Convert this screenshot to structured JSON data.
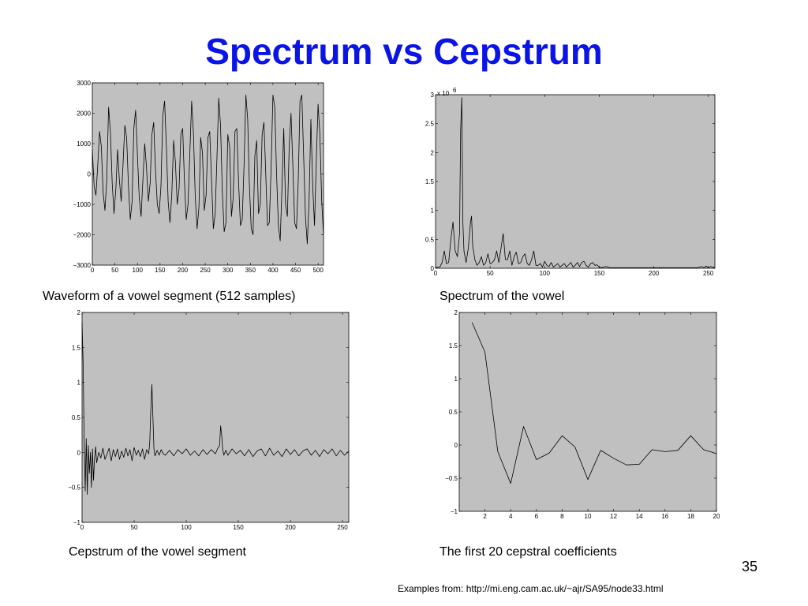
{
  "slide": {
    "title": "Spectrum vs Cepstrum",
    "page_number": "35",
    "source_note": "Examples from: http://mi.eng.cam.ac.uk/~ajr/SA95/node33.html",
    "plot_background": "#c0c0c0",
    "title_color": "#0a14e6"
  },
  "chart_data": [
    {
      "type": "line",
      "caption": "Waveform of a vowel segment (512 samples)",
      "xlim": [
        0,
        512
      ],
      "ylim": [
        -3000,
        3000
      ],
      "xticks": [
        0,
        50,
        100,
        150,
        200,
        250,
        300,
        350,
        400,
        450,
        500
      ],
      "yticks": [
        -3000,
        -2000,
        -1000,
        0,
        1000,
        2000,
        3000
      ],
      "x": [
        0,
        4,
        8,
        12,
        16,
        20,
        24,
        28,
        32,
        36,
        40,
        44,
        48,
        52,
        56,
        60,
        64,
        68,
        72,
        76,
        80,
        84,
        88,
        92,
        96,
        100,
        104,
        108,
        112,
        116,
        120,
        124,
        128,
        132,
        136,
        140,
        144,
        148,
        152,
        156,
        160,
        164,
        168,
        172,
        176,
        180,
        184,
        188,
        192,
        196,
        200,
        204,
        208,
        212,
        216,
        220,
        224,
        228,
        232,
        236,
        240,
        244,
        248,
        252,
        256,
        260,
        264,
        268,
        272,
        276,
        280,
        284,
        288,
        292,
        296,
        300,
        304,
        308,
        312,
        316,
        320,
        324,
        328,
        332,
        336,
        340,
        344,
        348,
        352,
        356,
        360,
        364,
        368,
        372,
        376,
        380,
        384,
        388,
        392,
        396,
        400,
        404,
        408,
        412,
        416,
        420,
        424,
        428,
        432,
        436,
        440,
        444,
        448,
        452,
        456,
        460,
        464,
        468,
        472,
        476,
        480,
        484,
        488,
        492,
        496,
        500,
        504,
        508,
        512
      ],
      "y": [
        800,
        -400,
        -700,
        300,
        1400,
        900,
        -600,
        -1200,
        -200,
        2200,
        1400,
        -300,
        -1300,
        -500,
        800,
        -200,
        -900,
        300,
        1600,
        1200,
        -400,
        -1500,
        -900,
        1500,
        2100,
        600,
        -800,
        -1400,
        -200,
        1000,
        200,
        -900,
        -300,
        1300,
        1700,
        100,
        -1000,
        -1300,
        -400,
        1900,
        2400,
        900,
        -900,
        -1600,
        -700,
        1100,
        400,
        -1000,
        -500,
        1300,
        1500,
        -200,
        -1500,
        -1000,
        700,
        2400,
        1300,
        -800,
        -1800,
        -1100,
        1200,
        700,
        -1200,
        -700,
        1200,
        1400,
        -200,
        -1800,
        -1300,
        500,
        2500,
        1600,
        -600,
        -1900,
        -1600,
        1300,
        900,
        -1400,
        -800,
        1400,
        1500,
        -300,
        -1700,
        -1500,
        300,
        2600,
        1800,
        -400,
        -1800,
        -2000,
        600,
        1100,
        -1300,
        -1000,
        1300,
        1700,
        0,
        -1700,
        -1600,
        200,
        2600,
        2200,
        0,
        -1700,
        -2200,
        -400,
        1500,
        -1000,
        -1400,
        900,
        2000,
        300,
        -1600,
        -1800,
        -200,
        2400,
        2600,
        600,
        -1400,
        -2300,
        -900,
        1800,
        -400,
        -1700,
        400,
        2300,
        1300,
        -900,
        -2000
      ]
    },
    {
      "type": "line",
      "caption": "Spectrum of the vowel",
      "xlim": [
        0,
        256
      ],
      "ylim": [
        0,
        3
      ],
      "exponent_label": "x 10",
      "exponent_value": "6",
      "xticks": [
        0,
        50,
        100,
        150,
        200,
        250
      ],
      "yticks": [
        0,
        0.5,
        1,
        1.5,
        2,
        2.5,
        3
      ],
      "x": [
        0,
        4,
        6,
        8,
        10,
        12,
        14,
        16,
        18,
        20,
        22,
        23,
        24,
        25,
        26,
        28,
        30,
        32,
        33,
        34,
        36,
        38,
        40,
        42,
        44,
        46,
        48,
        50,
        52,
        54,
        56,
        58,
        60,
        62,
        64,
        66,
        68,
        70,
        72,
        74,
        76,
        78,
        80,
        82,
        84,
        86,
        88,
        90,
        92,
        94,
        96,
        98,
        100,
        102,
        104,
        106,
        108,
        110,
        112,
        114,
        116,
        118,
        120,
        122,
        124,
        126,
        128,
        130,
        132,
        134,
        136,
        138,
        140,
        142,
        144,
        146,
        148,
        150,
        152,
        154,
        156,
        160,
        170,
        180,
        190,
        200,
        210,
        220,
        230,
        240,
        244,
        246,
        248,
        250,
        252,
        256
      ],
      "y": [
        0.02,
        0.02,
        0.1,
        0.3,
        0.08,
        0.1,
        0.5,
        0.8,
        0.3,
        0.2,
        0.6,
        2.4,
        2.95,
        0.8,
        0.3,
        0.1,
        0.35,
        0.8,
        0.9,
        0.4,
        0.15,
        0.05,
        0.1,
        0.2,
        0.05,
        0.1,
        0.25,
        0.08,
        0.1,
        0.15,
        0.3,
        0.1,
        0.35,
        0.6,
        0.15,
        0.15,
        0.3,
        0.05,
        0.2,
        0.28,
        0.08,
        0.1,
        0.2,
        0.25,
        0.08,
        0.05,
        0.15,
        0.3,
        0.05,
        0.05,
        0.08,
        0.02,
        0.12,
        0.05,
        0.03,
        0.1,
        0.02,
        0.05,
        0.08,
        0.02,
        0.05,
        0.08,
        0.02,
        0.06,
        0.1,
        0.02,
        0.05,
        0.1,
        0.03,
        0.1,
        0.12,
        0.05,
        0.02,
        0.08,
        0.1,
        0.05,
        0.06,
        0.02,
        0.01,
        0.02,
        0.03,
        0.01,
        0.01,
        0.01,
        0.01,
        0.01,
        0.01,
        0.01,
        0.01,
        0.01,
        0.03,
        0.01,
        0.04,
        0.01,
        0.03,
        0.01
      ]
    },
    {
      "type": "line",
      "caption": "Cepstrum of the vowel segment",
      "xlim": [
        0,
        256
      ],
      "ylim": [
        -1,
        2
      ],
      "xticks": [
        0,
        50,
        100,
        150,
        200,
        250
      ],
      "yticks": [
        -1,
        -0.5,
        0,
        0.5,
        1,
        1.5,
        2
      ],
      "x": [
        0,
        1,
        2,
        3,
        4,
        5,
        6,
        7,
        8,
        9,
        10,
        11,
        12,
        13,
        14,
        16,
        18,
        20,
        22,
        24,
        26,
        28,
        30,
        32,
        34,
        36,
        38,
        40,
        42,
        44,
        46,
        48,
        50,
        52,
        54,
        56,
        58,
        60,
        62,
        64,
        65,
        66,
        67,
        68,
        69,
        70,
        72,
        74,
        76,
        78,
        80,
        84,
        88,
        92,
        96,
        100,
        104,
        108,
        112,
        116,
        120,
        124,
        128,
        130,
        132,
        133,
        134,
        135,
        136,
        138,
        140,
        144,
        148,
        152,
        156,
        160,
        164,
        168,
        172,
        176,
        180,
        184,
        188,
        192,
        196,
        200,
        204,
        208,
        212,
        216,
        220,
        224,
        228,
        232,
        236,
        240,
        244,
        248,
        252,
        256
      ],
      "y": [
        1.85,
        1.3,
        0.2,
        -0.55,
        0.2,
        -0.6,
        0.1,
        -0.3,
        0.0,
        -0.5,
        0.05,
        -0.4,
        -0.1,
        0.08,
        -0.15,
        0.0,
        -0.08,
        0.06,
        -0.1,
        -0.02,
        0.06,
        -0.12,
        0.04,
        -0.06,
        0.05,
        -0.1,
        0.02,
        -0.07,
        0.06,
        -0.05,
        0.04,
        -0.12,
        0.07,
        -0.04,
        0.03,
        -0.06,
        0.05,
        -0.1,
        0.04,
        -0.02,
        0.15,
        0.6,
        0.97,
        0.5,
        0.05,
        -0.05,
        0.03,
        -0.04,
        0.04,
        -0.02,
        -0.04,
        0.03,
        -0.05,
        0.04,
        -0.02,
        0.05,
        -0.04,
        0.02,
        -0.05,
        0.04,
        -0.03,
        0.04,
        -0.02,
        0.05,
        0.1,
        0.38,
        0.25,
        0.05,
        -0.04,
        0.03,
        -0.04,
        0.05,
        -0.02,
        0.03,
        -0.05,
        0.04,
        -0.06,
        0.02,
        0.05,
        -0.05,
        0.06,
        -0.04,
        0.02,
        -0.06,
        0.05,
        -0.03,
        0.04,
        -0.05,
        0.02,
        0.05,
        -0.04,
        0.03,
        -0.06,
        0.04,
        -0.02,
        0.05,
        -0.05,
        0.03,
        -0.04,
        0.02
      ]
    },
    {
      "type": "line",
      "caption": "The first 20 cepstral coefficients",
      "xlim": [
        0,
        20
      ],
      "ylim": [
        -1,
        2
      ],
      "xticks": [
        2,
        4,
        6,
        8,
        10,
        12,
        14,
        16,
        18,
        20
      ],
      "yticks": [
        -1,
        -0.5,
        0,
        0.5,
        1,
        1.5,
        2
      ],
      "x": [
        1,
        2,
        3,
        4,
        5,
        6,
        7,
        8,
        9,
        10,
        11,
        12,
        13,
        14,
        15,
        16,
        17,
        18,
        19,
        20
      ],
      "y": [
        1.85,
        1.4,
        -0.1,
        -0.58,
        0.28,
        -0.22,
        -0.12,
        0.14,
        -0.03,
        -0.52,
        -0.08,
        -0.2,
        -0.3,
        -0.29,
        -0.07,
        -0.1,
        -0.08,
        0.14,
        -0.07,
        -0.13
      ]
    }
  ]
}
